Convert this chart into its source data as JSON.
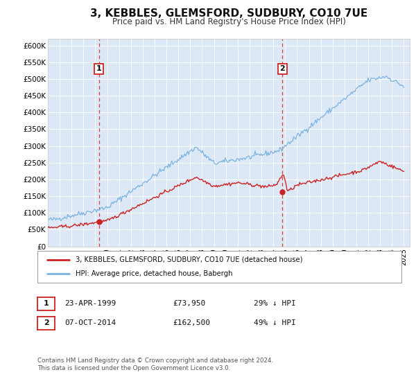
{
  "title": "3, KEBBLES, GLEMSFORD, SUDBURY, CO10 7UE",
  "subtitle": "Price paid vs. HM Land Registry's House Price Index (HPI)",
  "title_fontsize": 11,
  "subtitle_fontsize": 8.5,
  "background_color": "#ffffff",
  "plot_bg_color": "#dce8f5",
  "grid_color": "#ffffff",
  "ylim": [
    0,
    620000
  ],
  "xlim_start": 1995.0,
  "xlim_end": 2025.5,
  "yticks": [
    0,
    50000,
    100000,
    150000,
    200000,
    250000,
    300000,
    350000,
    400000,
    450000,
    500000,
    550000,
    600000
  ],
  "ytick_labels": [
    "£0",
    "£50K",
    "£100K",
    "£150K",
    "£200K",
    "£250K",
    "£300K",
    "£350K",
    "£400K",
    "£450K",
    "£500K",
    "£550K",
    "£600K"
  ],
  "hpi_color": "#7bb3e0",
  "price_color": "#cc2222",
  "marker_color": "#cc2222",
  "marker1_x": 1999.31,
  "marker1_y": 73950,
  "marker2_x": 2014.77,
  "marker2_y": 162500,
  "vline1_x": 1999.31,
  "vline2_x": 2014.77,
  "legend_house_label": "3, KEBBLES, GLEMSFORD, SUDBURY, CO10 7UE (detached house)",
  "legend_hpi_label": "HPI: Average price, detached house, Babergh",
  "ann1_date": "23-APR-1999",
  "ann1_price": "£73,950",
  "ann1_hpi": "29% ↓ HPI",
  "ann2_date": "07-OCT-2014",
  "ann2_price": "£162,500",
  "ann2_hpi": "49% ↓ HPI",
  "footer": "Contains HM Land Registry data © Crown copyright and database right 2024.\nThis data is licensed under the Open Government Licence v3.0."
}
